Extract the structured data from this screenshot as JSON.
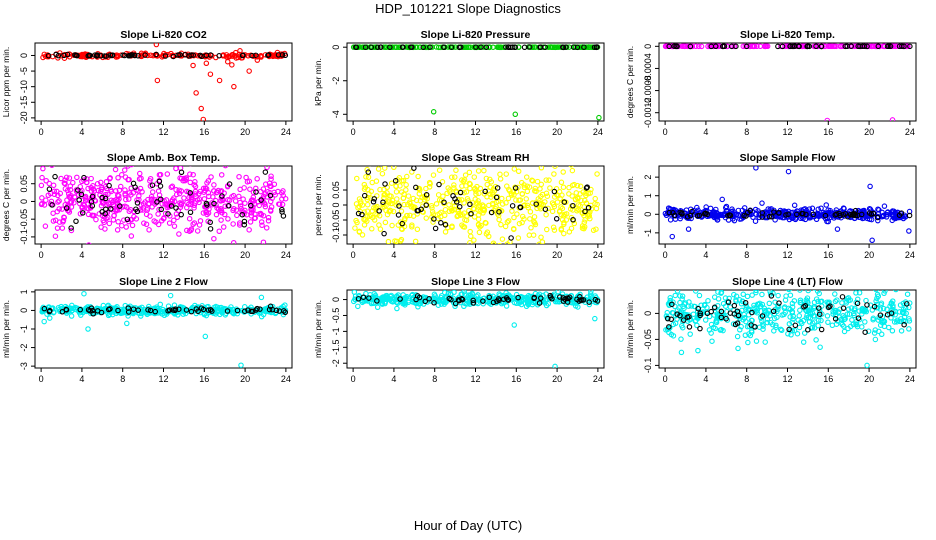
{
  "figure": {
    "title": "HDP_101221  Slope Diagnostics",
    "xlabel": "Hour of Day (UTC)"
  },
  "chart_data": [
    {
      "type": "scatter",
      "title": "Slope Li-820 CO2",
      "ylabel": "Licor ppm per min.",
      "x_ticks": [
        0,
        4,
        8,
        12,
        16,
        20,
        24
      ],
      "y_ticks": [
        0,
        -5,
        -10,
        -15,
        -20
      ],
      "ylim": [
        -21,
        4
      ],
      "xlim": [
        -0.6,
        24.6
      ],
      "main_color": "#ff0000",
      "main_count": 170,
      "main_spread": 0.35,
      "black_count": 55,
      "black_spread": 0.12,
      "outliers": [
        [
          11.3,
          3.5
        ],
        [
          11.4,
          -8
        ],
        [
          14.9,
          -3.2
        ],
        [
          15.2,
          -12
        ],
        [
          15.7,
          -17
        ],
        [
          15.9,
          -20.5
        ],
        [
          16.2,
          -2.5
        ],
        [
          16.6,
          -6
        ],
        [
          17.5,
          -8
        ],
        [
          18.3,
          -2
        ],
        [
          18.7,
          -3
        ],
        [
          18.9,
          -10
        ],
        [
          19.5,
          1.5
        ],
        [
          20.4,
          -5
        ],
        [
          21.2,
          -1.5
        ]
      ]
    },
    {
      "type": "scatter",
      "title": "Slope Li-820 Pressure",
      "ylabel": "kPa per min.",
      "x_ticks": [
        0,
        4,
        8,
        12,
        16,
        20,
        24
      ],
      "y_ticks": [
        0,
        -2,
        -4
      ],
      "ylim": [
        -4.4,
        0.25
      ],
      "xlim": [
        -0.6,
        24.6
      ],
      "main_color": "#00cc00",
      "main_count": 170,
      "main_spread": 0.005,
      "black_count": 45,
      "black_spread": 0.005,
      "outliers": [
        [
          7.9,
          -3.85
        ],
        [
          15.9,
          -4.0
        ],
        [
          24.1,
          -4.2
        ]
      ]
    },
    {
      "type": "scatter",
      "title": "Slope Li-820 Temp.",
      "ylabel": "degrees C per min.",
      "x_ticks": [
        0,
        4,
        8,
        12,
        16,
        20,
        24
      ],
      "y_ticks": [
        0,
        -0.0004,
        -0.0008,
        -0.0012
      ],
      "ylim": [
        -0.00135,
        6e-05
      ],
      "xlim": [
        -0.6,
        24.6
      ],
      "main_color": "#ff00ff",
      "main_count": 170,
      "main_spread": 1e-06,
      "black_count": 45,
      "black_spread": 1e-06,
      "outliers": [
        [
          15.9,
          -0.00134
        ],
        [
          22.3,
          -0.00133
        ]
      ]
    },
    {
      "type": "scatter",
      "title": "Slope Amb. Box Temp.",
      "ylabel": "degrees C per min.",
      "x_ticks": [
        0,
        4,
        8,
        12,
        16,
        20,
        24
      ],
      "y_ticks": [
        0.05,
        0,
        -0.05,
        -0.1
      ],
      "ylim": [
        -0.12,
        0.1
      ],
      "xlim": [
        -0.6,
        24.6
      ],
      "main_color": "#ff00ff",
      "main_count": 520,
      "main_spread": 0.045,
      "black_count": 60,
      "black_spread": 0.035,
      "outliers": [
        [
          7.3,
          0.09
        ],
        [
          11.6,
          0.075
        ],
        [
          21.8,
          -0.115
        ]
      ]
    },
    {
      "type": "scatter",
      "title": "Slope Gas Stream RH",
      "ylabel": "percent per min.",
      "x_ticks": [
        0,
        4,
        8,
        12,
        16,
        20,
        24
      ],
      "y_ticks": [
        0.05,
        0,
        -0.05,
        -0.1
      ],
      "ylim": [
        -0.13,
        0.13
      ],
      "xlim": [
        -0.6,
        24.6
      ],
      "main_color": "#ffff00",
      "main_count": 520,
      "main_spread": 0.055,
      "black_count": 55,
      "black_spread": 0.045,
      "outliers": [
        [
          2.5,
          0.12
        ],
        [
          4.1,
          -0.12
        ],
        [
          16.2,
          -0.11
        ],
        [
          20.6,
          0.11
        ]
      ]
    },
    {
      "type": "scatter",
      "title": "Slope Sample Flow",
      "ylabel": "ml/min per min.",
      "x_ticks": [
        0,
        4,
        8,
        12,
        16,
        20,
        24
      ],
      "y_ticks": [
        2,
        1,
        0,
        -1
      ],
      "ylim": [
        -1.6,
        2.6
      ],
      "xlim": [
        -0.6,
        24.6
      ],
      "main_color": "#0000ee",
      "main_count": 420,
      "main_spread": 0.15,
      "black_count": 60,
      "black_spread": 0.08,
      "outliers": [
        [
          0.7,
          -1.2
        ],
        [
          2.3,
          -0.8
        ],
        [
          5.6,
          0.8
        ],
        [
          8.9,
          2.5
        ],
        [
          9.5,
          0.6
        ],
        [
          12.1,
          2.3
        ],
        [
          15.8,
          0.5
        ],
        [
          16.9,
          -0.8
        ],
        [
          20.1,
          1.5
        ],
        [
          20.3,
          -1.4
        ],
        [
          23.9,
          -0.9
        ]
      ]
    },
    {
      "type": "scatter",
      "title": "Slope Line 2 Flow",
      "ylabel": "ml/min per min.",
      "x_ticks": [
        0,
        4,
        8,
        12,
        16,
        20,
        24
      ],
      "y_ticks": [
        1,
        0,
        -1,
        -2,
        -3
      ],
      "ylim": [
        -3.1,
        1.1
      ],
      "xlim": [
        -0.6,
        24.6
      ],
      "main_color": "#00eeee",
      "main_count": 420,
      "main_spread": 0.12,
      "black_count": 55,
      "black_spread": 0.06,
      "outliers": [
        [
          0.3,
          -0.6
        ],
        [
          4.2,
          0.9
        ],
        [
          4.6,
          -1.0
        ],
        [
          8.4,
          -0.7
        ],
        [
          12.7,
          0.8
        ],
        [
          16.1,
          -1.4
        ],
        [
          19.6,
          -2.95
        ],
        [
          21.6,
          0.7
        ]
      ]
    },
    {
      "type": "scatter",
      "title": "Slope Line 3 Flow",
      "ylabel": "ml/min per min.",
      "x_ticks": [
        0,
        4,
        8,
        12,
        16,
        20,
        24
      ],
      "y_ticks": [
        0,
        -0.5,
        -1,
        -1.5,
        -2
      ],
      "ylim": [
        -2.15,
        0.3
      ],
      "xlim": [
        -0.6,
        24.6
      ],
      "main_color": "#00eeee",
      "main_count": 420,
      "main_spread": 0.09,
      "black_count": 55,
      "black_spread": 0.07,
      "outliers": [
        [
          15.8,
          -0.8
        ],
        [
          19.8,
          -2.1
        ],
        [
          20.1,
          0.25
        ],
        [
          23.7,
          -0.6
        ]
      ]
    },
    {
      "type": "scatter",
      "title": "Slope Line 4 (LT) Flow",
      "ylabel": "ml/min per min.",
      "x_ticks": [
        0,
        4,
        8,
        12,
        16,
        20,
        24
      ],
      "y_ticks": [
        0,
        -0.05,
        -0.1
      ],
      "ylim": [
        -0.105,
        0.045
      ],
      "xlim": [
        -0.6,
        24.6
      ],
      "main_color": "#00eeee",
      "main_count": 480,
      "main_spread": 0.022,
      "black_count": 60,
      "black_spread": 0.018,
      "outliers": [
        [
          0.5,
          0.03
        ],
        [
          1.6,
          -0.075
        ],
        [
          8.9,
          0.04
        ],
        [
          15.2,
          -0.065
        ],
        [
          18.0,
          0.025
        ],
        [
          19.8,
          -0.1
        ]
      ]
    }
  ]
}
